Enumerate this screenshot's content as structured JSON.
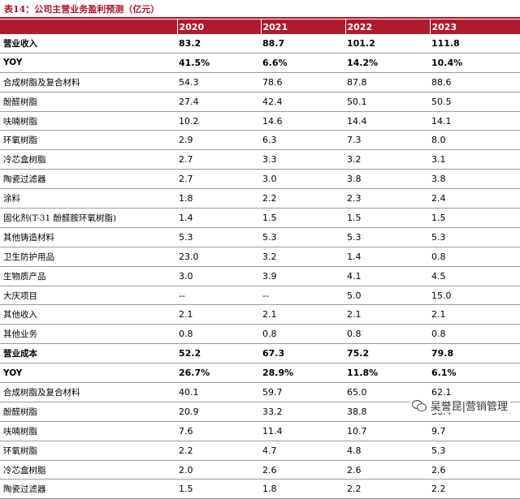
{
  "caption": "表14：公司主营业务盈利预测（亿元）",
  "columns": [
    "",
    "2020",
    "2021",
    "2022",
    "2023"
  ],
  "rows": [
    {
      "label": "营业收入",
      "bold": true,
      "values": [
        "83.2",
        "88.7",
        "101.2",
        "111.8"
      ]
    },
    {
      "label": "YOY",
      "bold": true,
      "values": [
        "41.5%",
        "6.6%",
        "14.2%",
        "10.4%"
      ]
    },
    {
      "label": "合成树脂及复合材料",
      "bold": false,
      "values": [
        "54.3",
        "78.6",
        "87.8",
        "88.6"
      ]
    },
    {
      "label": "酚醛树脂",
      "bold": false,
      "values": [
        "27.4",
        "42.4",
        "50.1",
        "50.5"
      ]
    },
    {
      "label": "呋喃树脂",
      "bold": false,
      "values": [
        "10.2",
        "14.6",
        "14.4",
        "14.1"
      ]
    },
    {
      "label": "环氧树脂",
      "bold": false,
      "values": [
        "2.9",
        "6.3",
        "7.3",
        "8.0"
      ]
    },
    {
      "label": "冷芯盒树脂",
      "bold": false,
      "values": [
        "2.7",
        "3.3",
        "3.2",
        "3.1"
      ]
    },
    {
      "label": "陶瓷过滤器",
      "bold": false,
      "values": [
        "2.7",
        "3.0",
        "3.8",
        "3.8"
      ]
    },
    {
      "label": "涂料",
      "bold": false,
      "values": [
        "1.8",
        "2.2",
        "2.3",
        "2.4"
      ]
    },
    {
      "label": "固化剂(T-31 酚醛胺环氧树脂)",
      "bold": false,
      "values": [
        "1.4",
        "1.5",
        "1.5",
        "1.5"
      ]
    },
    {
      "label": "其他铸造材料",
      "bold": false,
      "values": [
        "5.3",
        "5.3",
        "5.3",
        "5.3"
      ]
    },
    {
      "label": "卫生防护用品",
      "bold": false,
      "values": [
        "23.0",
        "3.2",
        "1.4",
        "0.8"
      ]
    },
    {
      "label": "生物质产品",
      "bold": false,
      "values": [
        "3.0",
        "3.9",
        "4.1",
        "4.5"
      ]
    },
    {
      "label": "大庆项目",
      "bold": false,
      "values": [
        "--",
        "--",
        "5.0",
        "15.0"
      ]
    },
    {
      "label": "其他收入",
      "bold": false,
      "values": [
        "2.1",
        "2.1",
        "2.1",
        "2.1"
      ]
    },
    {
      "label": "其他业务",
      "bold": false,
      "values": [
        "0.8",
        "0.8",
        "0.8",
        "0.8"
      ]
    },
    {
      "label": "营业成本",
      "bold": true,
      "values": [
        "52.2",
        "67.3",
        "75.2",
        "79.8"
      ]
    },
    {
      "label": "YOY",
      "bold": true,
      "values": [
        "26.7%",
        "28.9%",
        "11.8%",
        "6.1%"
      ]
    },
    {
      "label": "合成树脂及复合材料",
      "bold": false,
      "values": [
        "40.1",
        "59.7",
        "65.0",
        "62.1"
      ]
    },
    {
      "label": "酚醛树脂",
      "bold": false,
      "values": [
        "20.9",
        "33.2",
        "38.8",
        "36.4"
      ]
    },
    {
      "label": "呋喃树脂",
      "bold": false,
      "values": [
        "7.6",
        "11.4",
        "10.7",
        "9.7"
      ]
    },
    {
      "label": "环氧树脂",
      "bold": false,
      "values": [
        "2.2",
        "4.7",
        "4.8",
        "5.3"
      ]
    },
    {
      "label": "冷芯盒树脂",
      "bold": false,
      "values": [
        "2.0",
        "2.6",
        "2.6",
        "2.6"
      ]
    },
    {
      "label": "陶瓷过滤器",
      "bold": false,
      "values": [
        "1.5",
        "1.8",
        "2.2",
        "2.2"
      ]
    }
  ],
  "watermark": {
    "icon": "wechat-icon",
    "text": "吴誉昆|营销管理"
  }
}
